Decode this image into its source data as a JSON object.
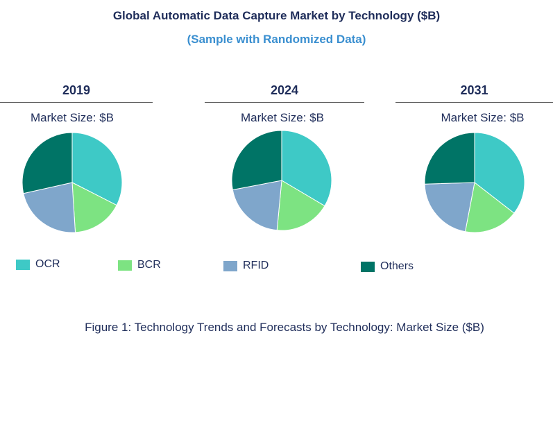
{
  "title": "Global Automatic Data Capture Market by Technology ($B)",
  "subtitle": "(Sample with Randomized Data)",
  "caption": "Figure 1: Technology Trends and Forecasts by Technology: Market Size ($B)",
  "colors": {
    "OCR": "#3ec9c6",
    "BCR": "#7de382",
    "RFID": "#7fa6cb",
    "Others": "#007466"
  },
  "chart_data": [
    {
      "type": "pie",
      "title": "2019",
      "subtitle": "Market Size: $B",
      "categories": [
        "OCR",
        "BCR",
        "RFID",
        "Others"
      ],
      "values": [
        32.5,
        16.5,
        22.5,
        28.5
      ]
    },
    {
      "type": "pie",
      "title": "2024",
      "subtitle": "Market Size: $B",
      "categories": [
        "OCR",
        "BCR",
        "RFID",
        "Others"
      ],
      "values": [
        33.5,
        18.0,
        20.5,
        28.0
      ]
    },
    {
      "type": "pie",
      "title": "2031",
      "subtitle": "Market Size: $B",
      "categories": [
        "OCR",
        "BCR",
        "RFID",
        "Others"
      ],
      "values": [
        35.5,
        17.5,
        21.5,
        25.5
      ]
    }
  ],
  "legend": [
    {
      "label": "OCR"
    },
    {
      "label": "BCR"
    },
    {
      "label": "RFID"
    },
    {
      "label": "Others"
    }
  ]
}
